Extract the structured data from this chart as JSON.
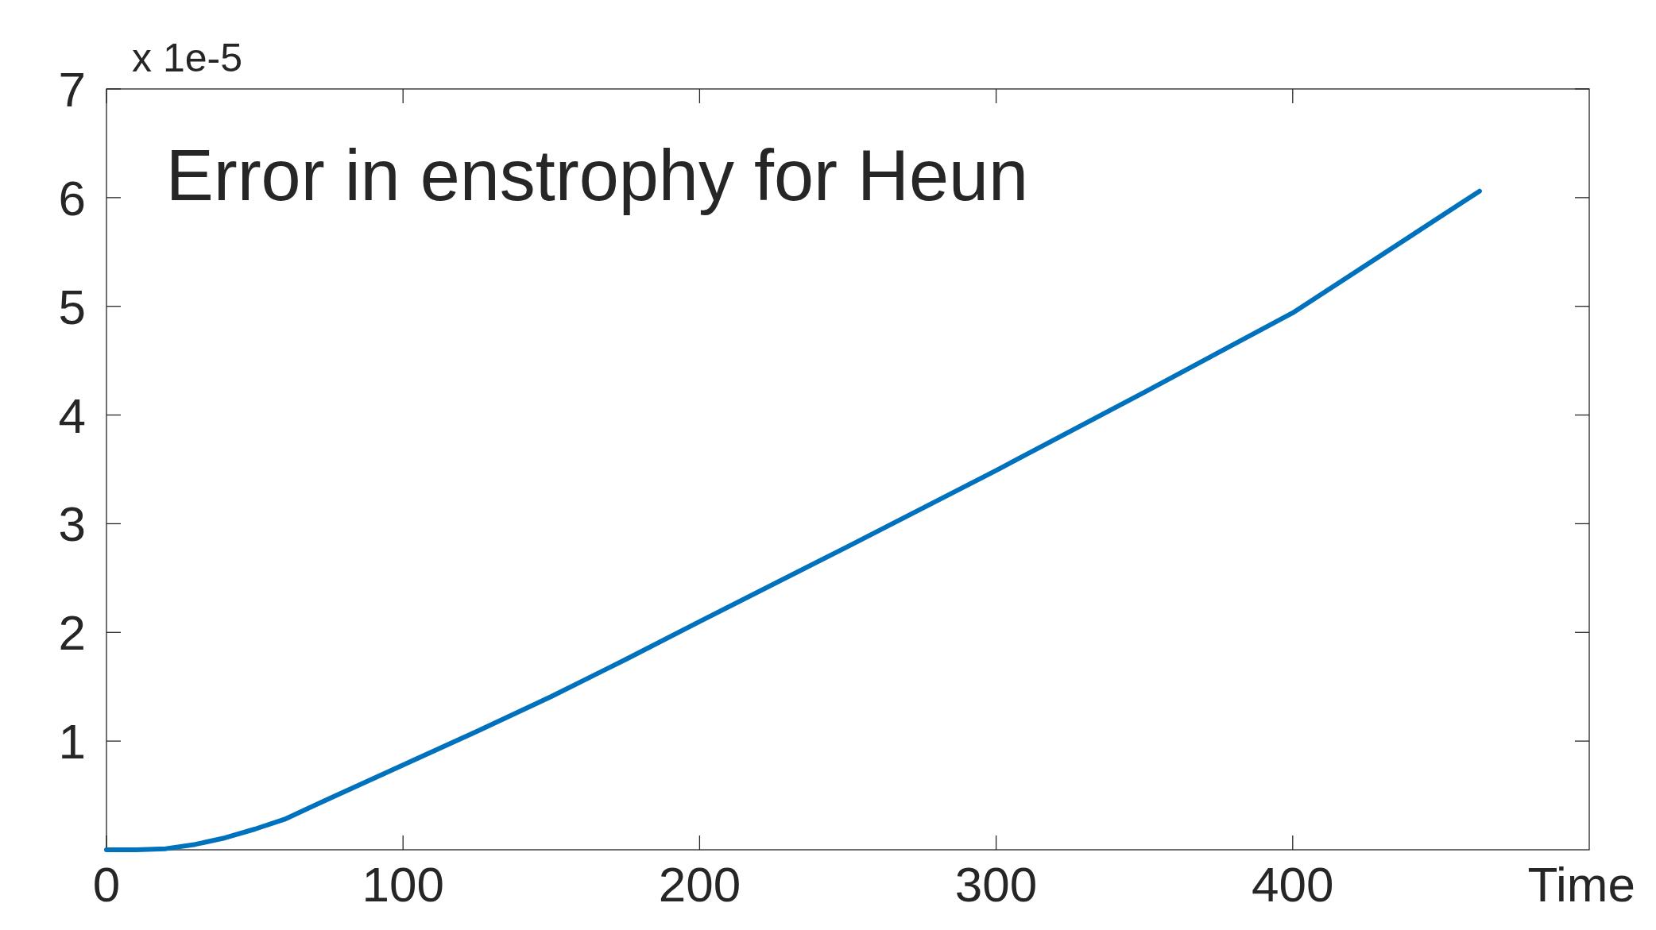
{
  "chart_data": {
    "type": "line",
    "title": "Error in enstrophy for Heun",
    "xlabel": "Time",
    "annotations": [
      "x 1e-5"
    ],
    "x": [
      0,
      10,
      20,
      30,
      40,
      50,
      60,
      75,
      100,
      125,
      150,
      175,
      200,
      250,
      300,
      350,
      400,
      463
    ],
    "series": [
      {
        "color": "#0072bd",
        "values": [
          0,
          0,
          0.01,
          0.05,
          0.11,
          0.19,
          0.28,
          0.47,
          0.78,
          1.09,
          1.41,
          1.75,
          2.1,
          2.79,
          3.49,
          4.21,
          4.94,
          6.06
        ]
      }
    ],
    "xlim": [
      0,
      500
    ],
    "xticks": [
      0,
      100,
      200,
      300,
      400
    ],
    "ylim": [
      0,
      7
    ],
    "yticks": [
      1,
      2,
      3,
      4,
      5,
      6,
      7
    ],
    "grid": false
  }
}
